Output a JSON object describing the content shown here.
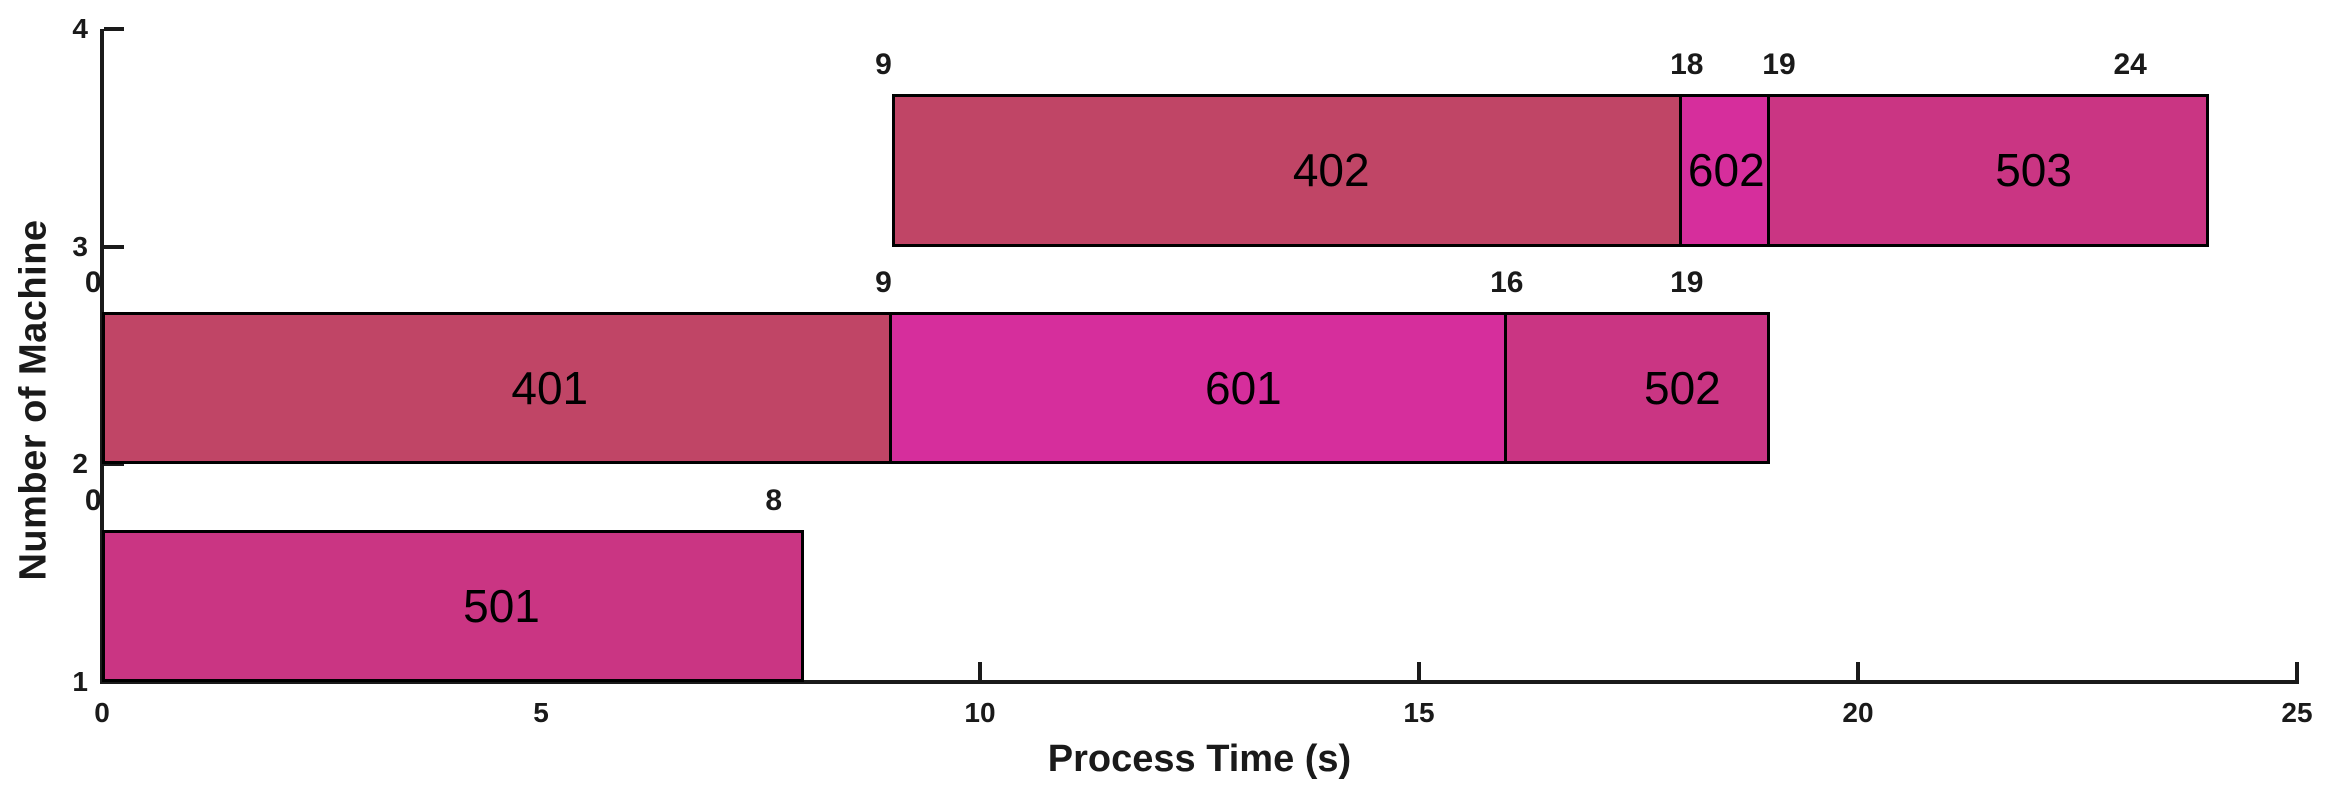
{
  "chart_data": {
    "type": "bar",
    "variant": "gantt",
    "title": "",
    "xlabel": "Process Time (s)",
    "ylabel": "Number of Machine",
    "xlim": [
      0,
      25
    ],
    "ylim": [
      1,
      4
    ],
    "x_ticks": [
      0,
      5,
      10,
      15,
      20,
      25
    ],
    "y_ticks": [
      1,
      2,
      3,
      4
    ],
    "bar_height": 0.7,
    "grid": false,
    "legend": null,
    "axis_color": "#1a1a1a",
    "bar_border_color": "#000000",
    "palette": {
      "job_400_series": "#C04566",
      "job_500_series": "#CA3583",
      "job_600_series": "#D62E9C"
    },
    "machines": [
      {
        "machine": 1,
        "segments": [
          {
            "job": "501",
            "start": 0,
            "end": 8,
            "color": "#CA3583",
            "label_x": 4.55
          }
        ],
        "time_labels": [
          {
            "text": "0",
            "x": -0.1
          },
          {
            "text": "8",
            "x": 7.65
          }
        ]
      },
      {
        "machine": 2,
        "segments": [
          {
            "job": "401",
            "start": 0,
            "end": 9,
            "color": "#C04566",
            "label_x": 5.1
          },
          {
            "job": "601",
            "start": 9,
            "end": 16,
            "color": "#D62E9C",
            "label_x": 13.0
          },
          {
            "job": "502",
            "start": 16,
            "end": 19,
            "color": "#CA3583",
            "label_x": 18.0
          }
        ],
        "time_labels": [
          {
            "text": "0",
            "x": -0.1
          },
          {
            "text": "9",
            "x": 8.9
          },
          {
            "text": "16",
            "x": 16.0
          },
          {
            "text": "19",
            "x": 18.05
          }
        ]
      },
      {
        "machine": 3,
        "segments": [
          {
            "job": "402",
            "start": 9,
            "end": 18,
            "color": "#C04566",
            "label_x": 14.0
          },
          {
            "job": "602",
            "start": 18,
            "end": 19,
            "color": "#D62E9C",
            "label_x": 18.5
          },
          {
            "job": "503",
            "start": 19,
            "end": 24,
            "color": "#CA3583",
            "label_x": 22.0
          }
        ],
        "time_labels": [
          {
            "text": "9",
            "x": 8.9
          },
          {
            "text": "18",
            "x": 18.05
          },
          {
            "text": "19",
            "x": 19.1
          },
          {
            "text": "24",
            "x": 23.1
          }
        ]
      }
    ]
  }
}
